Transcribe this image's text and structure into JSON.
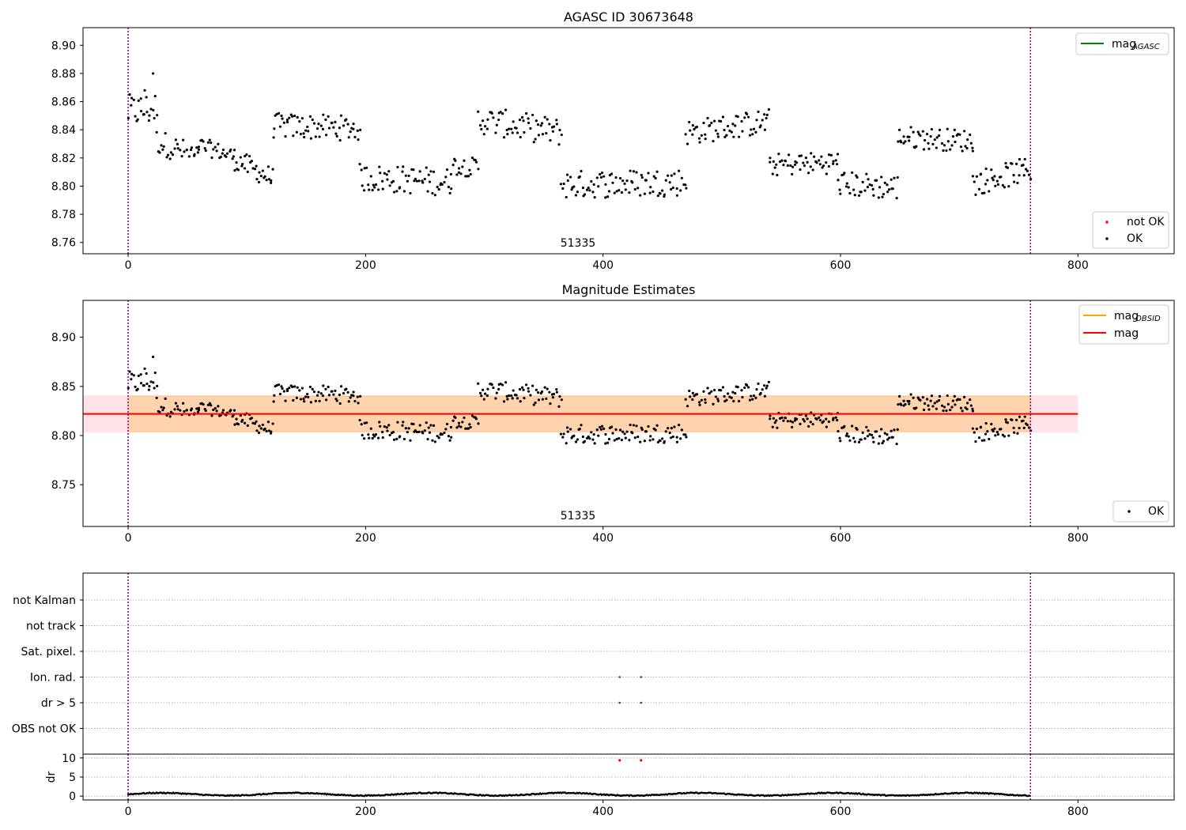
{
  "chart_data": [
    {
      "type": "scatter",
      "title": "AGASC ID 30673648",
      "xlim": [
        -38,
        881
      ],
      "ylim": [
        8.752,
        8.9125
      ],
      "xticks": [
        "0",
        "200",
        "400",
        "600",
        "800"
      ],
      "yticks": [
        "8.76",
        "8.78",
        "8.80",
        "8.82",
        "8.84",
        "8.86",
        "8.88",
        "8.90"
      ],
      "vlines": [
        0,
        760
      ],
      "vline_color": "#800080",
      "annotation": "51335",
      "annotation_x": 380,
      "legend_upper": [
        {
          "label": "mag",
          "sub": "AGASC",
          "color": "#008000",
          "marker": "line"
        }
      ],
      "legend_lower": [
        {
          "label": "not OK",
          "color": "#ff0000",
          "marker": "dot"
        },
        {
          "label": "OK",
          "color": "#000000",
          "marker": "dot"
        }
      ],
      "series": [
        {
          "name": "OK",
          "color": "#000000",
          "segments": [
            {
              "x0": 0,
              "x1": 24,
              "base": [
                8.853,
                8.855
              ],
              "jitter": 0.012,
              "n": 22
            },
            {
              "x0": 24,
              "x1": 60,
              "base": [
                8.832,
                8.82
              ],
              "jitter": 0.009,
              "n": 30
            },
            {
              "x0": 60,
              "x1": 90,
              "base": [
                8.829,
                8.821
              ],
              "jitter": 0.006,
              "n": 26
            },
            {
              "x0": 90,
              "x1": 122,
              "base": [
                8.819,
                8.805
              ],
              "jitter": 0.008,
              "n": 30
            },
            {
              "x0": 122,
              "x1": 195,
              "base": [
                8.843,
                8.841
              ],
              "jitter": 0.009,
              "n": 64
            },
            {
              "x0": 195,
              "x1": 272,
              "base": [
                8.806,
                8.803
              ],
              "jitter": 0.01,
              "n": 66
            },
            {
              "x0": 272,
              "x1": 295,
              "base": [
                8.815,
                8.813
              ],
              "jitter": 0.007,
              "n": 20
            },
            {
              "x0": 295,
              "x1": 365,
              "base": [
                8.847,
                8.838
              ],
              "jitter": 0.01,
              "n": 60
            },
            {
              "x0": 365,
              "x1": 470,
              "base": [
                8.801,
                8.803
              ],
              "jitter": 0.01,
              "n": 90
            },
            {
              "x0": 470,
              "x1": 540,
              "base": [
                8.838,
                8.846
              ],
              "jitter": 0.009,
              "n": 60
            },
            {
              "x0": 540,
              "x1": 598,
              "base": [
                8.815,
                8.817
              ],
              "jitter": 0.008,
              "n": 50
            },
            {
              "x0": 598,
              "x1": 648,
              "base": [
                8.802,
                8.799
              ],
              "jitter": 0.009,
              "n": 44
            },
            {
              "x0": 648,
              "x1": 712,
              "base": [
                8.835,
                8.832
              ],
              "jitter": 0.008,
              "n": 56
            },
            {
              "x0": 712,
              "x1": 760,
              "base": [
                8.802,
                8.812
              ],
              "jitter": 0.009,
              "n": 44
            }
          ]
        }
      ]
    },
    {
      "type": "scatter",
      "title": "Magnitude Estimates",
      "xlim": [
        -38,
        881
      ],
      "ylim": [
        8.7075,
        8.9375
      ],
      "xticks": [
        "0",
        "200",
        "400",
        "600",
        "800"
      ],
      "yticks": [
        "8.75",
        "8.80",
        "8.85",
        "8.90"
      ],
      "vlines": [
        0,
        760
      ],
      "vline_color": "#800080",
      "annotation": "51335",
      "annotation_x": 380,
      "hline": {
        "y": 8.822,
        "color": "#ff0000",
        "x0": -38,
        "x1": 800
      },
      "band": {
        "y0": 8.803,
        "y1": 8.841,
        "x0": -38,
        "x1": 800,
        "color": "#ffc0cb"
      },
      "band_obsid": {
        "y0": 8.804,
        "y1": 8.84,
        "x0": -38,
        "x1": 760,
        "color": "#ffa500"
      },
      "legend_upper": [
        {
          "label": "mag",
          "sub": "OBSID",
          "color": "#ffa500",
          "marker": "line"
        },
        {
          "label": "mag",
          "sub": "",
          "color": "#ff0000",
          "marker": "line"
        }
      ],
      "legend_lower": [
        {
          "label": "OK",
          "color": "#000000",
          "marker": "dot"
        }
      ]
    },
    {
      "type": "scatter",
      "title": "",
      "xlim": [
        -38,
        881
      ],
      "categories": [
        "not Kalman",
        "not track",
        "Sat. pixel.",
        "Ion. rad.",
        "dr > 5",
        "OBS not OK"
      ],
      "flag_points": [
        {
          "category": "Ion. rad.",
          "x": [
            414,
            432
          ]
        },
        {
          "category": "dr > 5",
          "x": [
            414,
            432
          ]
        }
      ],
      "xticks": [
        "0",
        "200",
        "400",
        "600",
        "800"
      ],
      "vlines": [
        0,
        760
      ],
      "vline_color": "#800080"
    },
    {
      "type": "scatter",
      "title": "",
      "ylabel": "dr",
      "xlim": [
        -38,
        881
      ],
      "ylim": [
        -1,
        11
      ],
      "yticks": [
        "0",
        "5",
        "10"
      ],
      "xticks": [
        "0",
        "200",
        "400",
        "600",
        "800"
      ],
      "vlines": [
        0,
        760
      ],
      "vline_color": "#800080",
      "outliers": {
        "x": [
          414,
          432
        ],
        "y": [
          10,
          10
        ],
        "color": "#ff0000"
      },
      "n_points": 760
    }
  ]
}
